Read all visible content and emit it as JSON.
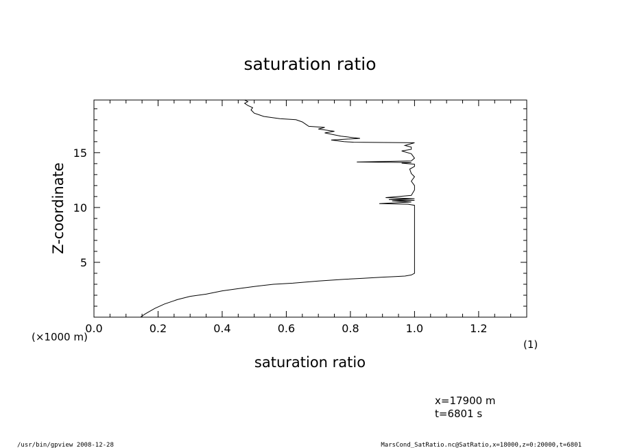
{
  "chart_data": {
    "type": "line",
    "title": "saturation ratio",
    "xlabel": "saturation ratio",
    "ylabel": "Z-coordinate",
    "xunit": "(1)",
    "yunit": "(×1000 m)",
    "xlim": [
      0.0,
      1.35
    ],
    "ylim": [
      0.0,
      19.8
    ],
    "xticks": [
      0.0,
      0.2,
      0.4,
      0.6,
      0.8,
      1.0,
      1.2
    ],
    "xtick_labels": [
      "0.0",
      "0.2",
      "0.4",
      "0.6",
      "0.8",
      "1.0",
      "1.2"
    ],
    "yticks": [
      5,
      10,
      15
    ],
    "ytick_labels": [
      "5",
      "10",
      "15"
    ],
    "grid": false,
    "series": [
      {
        "x": [
          0.145,
          0.16,
          0.19,
          0.22,
          0.26,
          0.3,
          0.35,
          0.4,
          0.45,
          0.5,
          0.56,
          0.62,
          0.7,
          0.78,
          0.84,
          0.9,
          0.94,
          0.97,
          0.99,
          1.0,
          1.0,
          1.0,
          1.0,
          1.0,
          1.0,
          1.0,
          1.0,
          1.0,
          1.0,
          1.0,
          1.0,
          1.0,
          1.0,
          0.98,
          0.89,
          0.99,
          0.93,
          1.0,
          0.92,
          1.0,
          0.91,
          0.99,
          1.0,
          1.0,
          0.99,
          1.0,
          0.99,
          0.985,
          1.0,
          1.0,
          0.96,
          0.99,
          0.82,
          0.99,
          1.0,
          0.99,
          0.96,
          0.99,
          0.99,
          0.97,
          1.0,
          0.81,
          0.78,
          0.74,
          0.83,
          0.77,
          0.72,
          0.75,
          0.7,
          0.72,
          0.67,
          0.66,
          0.65,
          0.63,
          0.58,
          0.53,
          0.5,
          0.49,
          0.495,
          0.48,
          0.47,
          0.48,
          0.47
        ],
        "y": [
          0.0,
          0.3,
          0.8,
          1.2,
          1.6,
          1.9,
          2.1,
          2.4,
          2.6,
          2.8,
          3.0,
          3.1,
          3.3,
          3.45,
          3.55,
          3.65,
          3.7,
          3.75,
          3.85,
          4.0,
          4.5,
          5.0,
          5.5,
          6.0,
          6.5,
          7.0,
          7.5,
          8.0,
          8.5,
          9.0,
          9.5,
          10.0,
          10.2,
          10.3,
          10.35,
          10.5,
          10.6,
          10.65,
          10.72,
          10.8,
          10.9,
          11.1,
          11.6,
          12.0,
          12.4,
          12.8,
          13.1,
          13.5,
          13.75,
          13.95,
          14.05,
          14.1,
          14.15,
          14.25,
          14.5,
          14.9,
          15.15,
          15.3,
          15.5,
          15.65,
          15.9,
          15.95,
          16.0,
          16.15,
          16.3,
          16.5,
          16.8,
          16.95,
          17.15,
          17.3,
          17.4,
          17.6,
          17.8,
          18.0,
          18.1,
          18.3,
          18.6,
          18.9,
          19.1,
          19.3,
          19.5,
          19.65,
          19.8
        ]
      }
    ]
  },
  "annotations": {
    "position_x": "x=17900 m",
    "time": "t=6801 s"
  },
  "footer": {
    "left": "/usr/bin/gpview   2008-12-28",
    "right": "MarsCond_SatRatio.nc@SatRatio,x=18000,z=0:20000,t=6801"
  }
}
